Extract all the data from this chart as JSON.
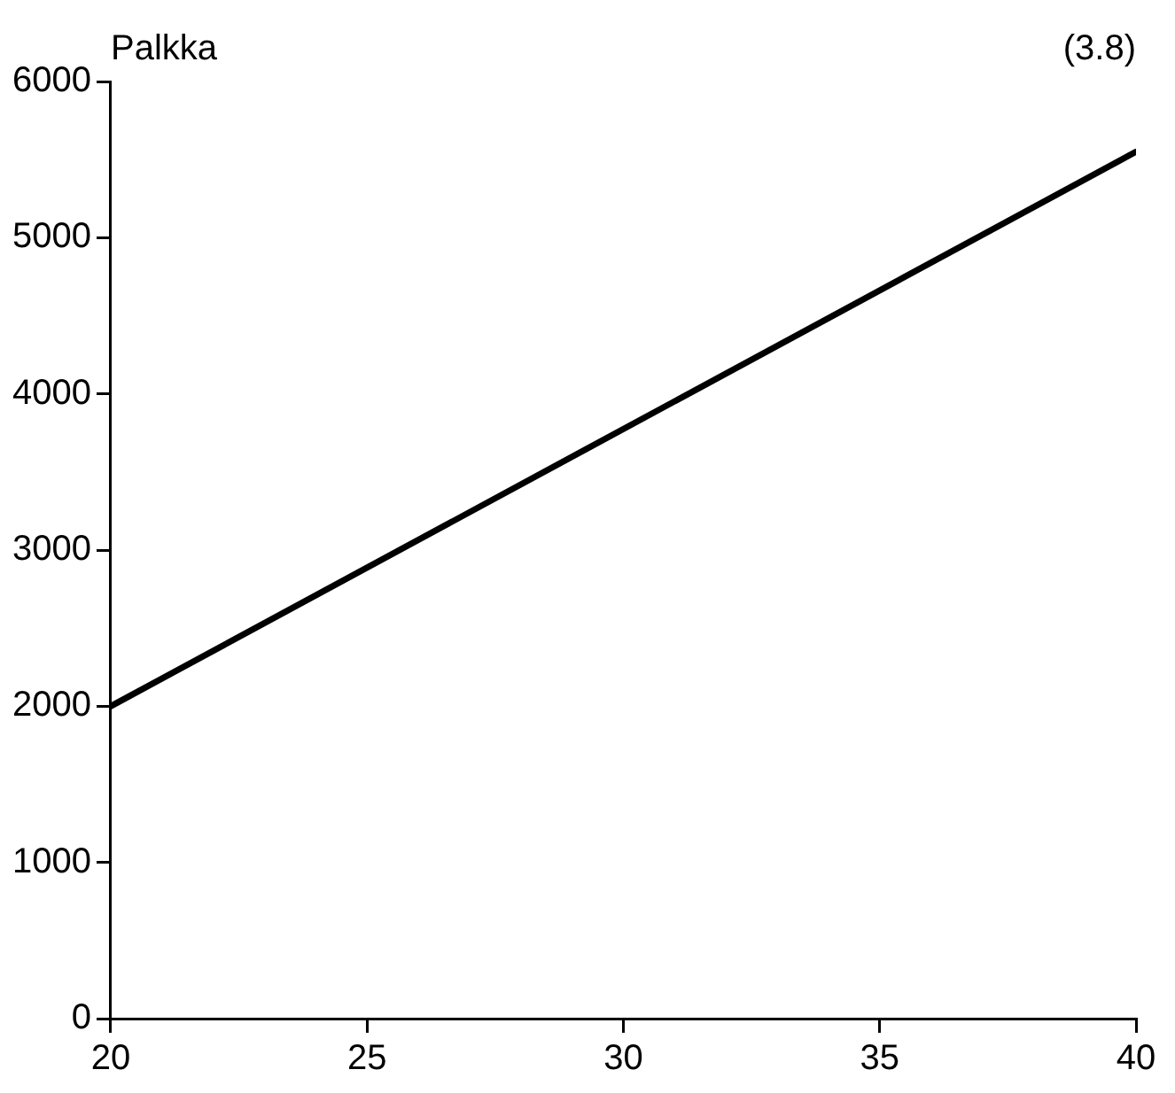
{
  "chart_data": {
    "type": "line",
    "ylabel": "Palkka",
    "annotations": [
      "(3.8)"
    ],
    "x": [
      20,
      40
    ],
    "series": [
      {
        "color": "#000000",
        "values": [
          2000,
          5550
        ]
      }
    ],
    "xlim": [
      20,
      40
    ],
    "xticks": [
      20,
      25,
      30,
      35,
      40
    ],
    "ylim": [
      0,
      6000
    ],
    "yticks": [
      0,
      1000,
      2000,
      3000,
      4000,
      5000,
      6000
    ],
    "grid": false,
    "legend": false,
    "marker": "none",
    "line_style": "solid"
  }
}
